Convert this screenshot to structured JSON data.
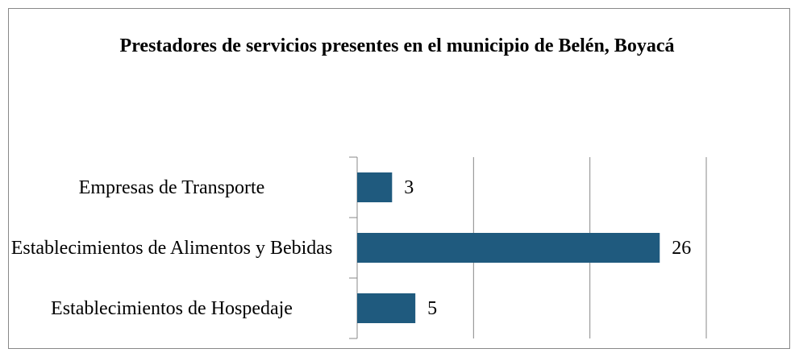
{
  "chart_data": {
    "type": "bar",
    "orientation": "horizontal",
    "title": "Prestadores de servicios presentes en el municipio de Belén, Boyacá",
    "categories": [
      "Empresas de Transporte",
      "Establecimientos de Alimentos y Bebidas",
      "Establecimientos de Hospedaje"
    ],
    "values": [
      3,
      26,
      5
    ],
    "color": "#1f5a7e",
    "xlim": [
      0,
      30
    ],
    "xticks": [
      0,
      10,
      20,
      30
    ],
    "grid": true
  }
}
